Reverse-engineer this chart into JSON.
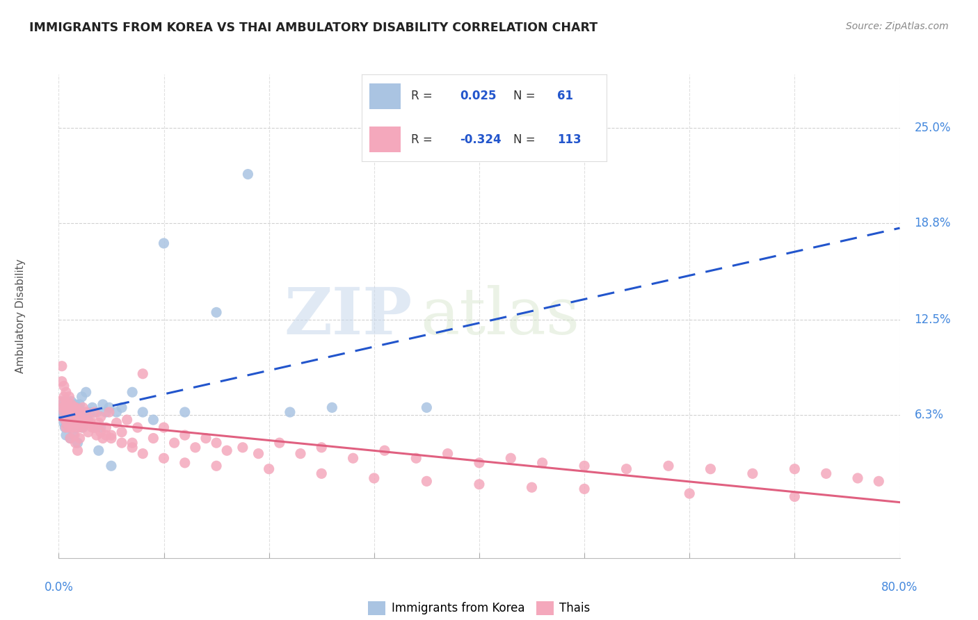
{
  "title": "IMMIGRANTS FROM KOREA VS THAI AMBULATORY DISABILITY CORRELATION CHART",
  "source": "Source: ZipAtlas.com",
  "ylabel": "Ambulatory Disability",
  "ytick_labels": [
    "6.3%",
    "12.5%",
    "18.8%",
    "25.0%"
  ],
  "ytick_values": [
    0.063,
    0.125,
    0.188,
    0.25
  ],
  "xmin": 0.0,
  "xmax": 0.8,
  "ymin": -0.03,
  "ymax": 0.285,
  "korea_R": 0.025,
  "korea_N": 61,
  "thai_R": -0.324,
  "thai_N": 113,
  "korea_color": "#aac4e2",
  "thai_color": "#f4a8bc",
  "korea_line_color": "#2255cc",
  "thai_line_color": "#e06080",
  "legend_korea_label": "Immigrants from Korea",
  "legend_thai_label": "Thais",
  "background_color": "#ffffff",
  "grid_color": "#cccccc",
  "watermark_zip": "ZIP",
  "watermark_atlas": "atlas",
  "korea_scatter_x": [
    0.002,
    0.003,
    0.004,
    0.005,
    0.005,
    0.006,
    0.006,
    0.007,
    0.007,
    0.008,
    0.008,
    0.009,
    0.009,
    0.01,
    0.01,
    0.01,
    0.011,
    0.011,
    0.012,
    0.012,
    0.013,
    0.013,
    0.014,
    0.015,
    0.015,
    0.016,
    0.016,
    0.017,
    0.018,
    0.018,
    0.019,
    0.02,
    0.02,
    0.021,
    0.022,
    0.023,
    0.025,
    0.026,
    0.028,
    0.03,
    0.032,
    0.034,
    0.036,
    0.038,
    0.04,
    0.042,
    0.045,
    0.048,
    0.05,
    0.055,
    0.06,
    0.07,
    0.08,
    0.09,
    0.1,
    0.12,
    0.15,
    0.18,
    0.22,
    0.26,
    0.35
  ],
  "korea_scatter_y": [
    0.068,
    0.065,
    0.062,
    0.058,
    0.072,
    0.06,
    0.055,
    0.065,
    0.05,
    0.07,
    0.063,
    0.058,
    0.068,
    0.062,
    0.055,
    0.07,
    0.065,
    0.048,
    0.06,
    0.072,
    0.058,
    0.065,
    0.05,
    0.068,
    0.062,
    0.055,
    0.07,
    0.06,
    0.065,
    0.045,
    0.068,
    0.06,
    0.07,
    0.062,
    0.075,
    0.055,
    0.065,
    0.078,
    0.06,
    0.065,
    0.068,
    0.055,
    0.065,
    0.04,
    0.055,
    0.07,
    0.065,
    0.068,
    0.03,
    0.065,
    0.068,
    0.078,
    0.065,
    0.06,
    0.175,
    0.065,
    0.13,
    0.22,
    0.065,
    0.068,
    0.068
  ],
  "thai_scatter_x": [
    0.002,
    0.003,
    0.004,
    0.005,
    0.005,
    0.006,
    0.006,
    0.007,
    0.007,
    0.008,
    0.008,
    0.009,
    0.009,
    0.01,
    0.01,
    0.01,
    0.011,
    0.011,
    0.012,
    0.012,
    0.013,
    0.013,
    0.014,
    0.015,
    0.015,
    0.016,
    0.016,
    0.017,
    0.018,
    0.018,
    0.019,
    0.02,
    0.02,
    0.021,
    0.022,
    0.023,
    0.025,
    0.026,
    0.028,
    0.03,
    0.032,
    0.034,
    0.036,
    0.038,
    0.04,
    0.042,
    0.045,
    0.048,
    0.05,
    0.055,
    0.06,
    0.065,
    0.07,
    0.075,
    0.08,
    0.09,
    0.1,
    0.11,
    0.12,
    0.13,
    0.14,
    0.15,
    0.16,
    0.175,
    0.19,
    0.21,
    0.23,
    0.25,
    0.28,
    0.31,
    0.34,
    0.37,
    0.4,
    0.43,
    0.46,
    0.5,
    0.54,
    0.58,
    0.62,
    0.66,
    0.7,
    0.73,
    0.76,
    0.78,
    0.003,
    0.005,
    0.007,
    0.01,
    0.012,
    0.015,
    0.018,
    0.02,
    0.025,
    0.03,
    0.035,
    0.04,
    0.045,
    0.05,
    0.06,
    0.07,
    0.08,
    0.1,
    0.12,
    0.15,
    0.2,
    0.25,
    0.3,
    0.35,
    0.4,
    0.45,
    0.5,
    0.6,
    0.7
  ],
  "thai_scatter_y": [
    0.072,
    0.085,
    0.068,
    0.065,
    0.075,
    0.06,
    0.068,
    0.072,
    0.055,
    0.065,
    0.058,
    0.07,
    0.062,
    0.068,
    0.06,
    0.055,
    0.065,
    0.048,
    0.062,
    0.058,
    0.068,
    0.055,
    0.065,
    0.06,
    0.05,
    0.068,
    0.045,
    0.058,
    0.062,
    0.04,
    0.055,
    0.065,
    0.048,
    0.06,
    0.055,
    0.068,
    0.058,
    0.065,
    0.052,
    0.06,
    0.055,
    0.065,
    0.05,
    0.058,
    0.062,
    0.048,
    0.055,
    0.065,
    0.05,
    0.058,
    0.052,
    0.06,
    0.045,
    0.055,
    0.09,
    0.048,
    0.055,
    0.045,
    0.05,
    0.042,
    0.048,
    0.045,
    0.04,
    0.042,
    0.038,
    0.045,
    0.038,
    0.042,
    0.035,
    0.04,
    0.035,
    0.038,
    0.032,
    0.035,
    0.032,
    0.03,
    0.028,
    0.03,
    0.028,
    0.025,
    0.028,
    0.025,
    0.022,
    0.02,
    0.095,
    0.082,
    0.078,
    0.075,
    0.07,
    0.068,
    0.065,
    0.062,
    0.06,
    0.058,
    0.055,
    0.052,
    0.05,
    0.048,
    0.045,
    0.042,
    0.038,
    0.035,
    0.032,
    0.03,
    0.028,
    0.025,
    0.022,
    0.02,
    0.018,
    0.016,
    0.015,
    0.012,
    0.01
  ]
}
